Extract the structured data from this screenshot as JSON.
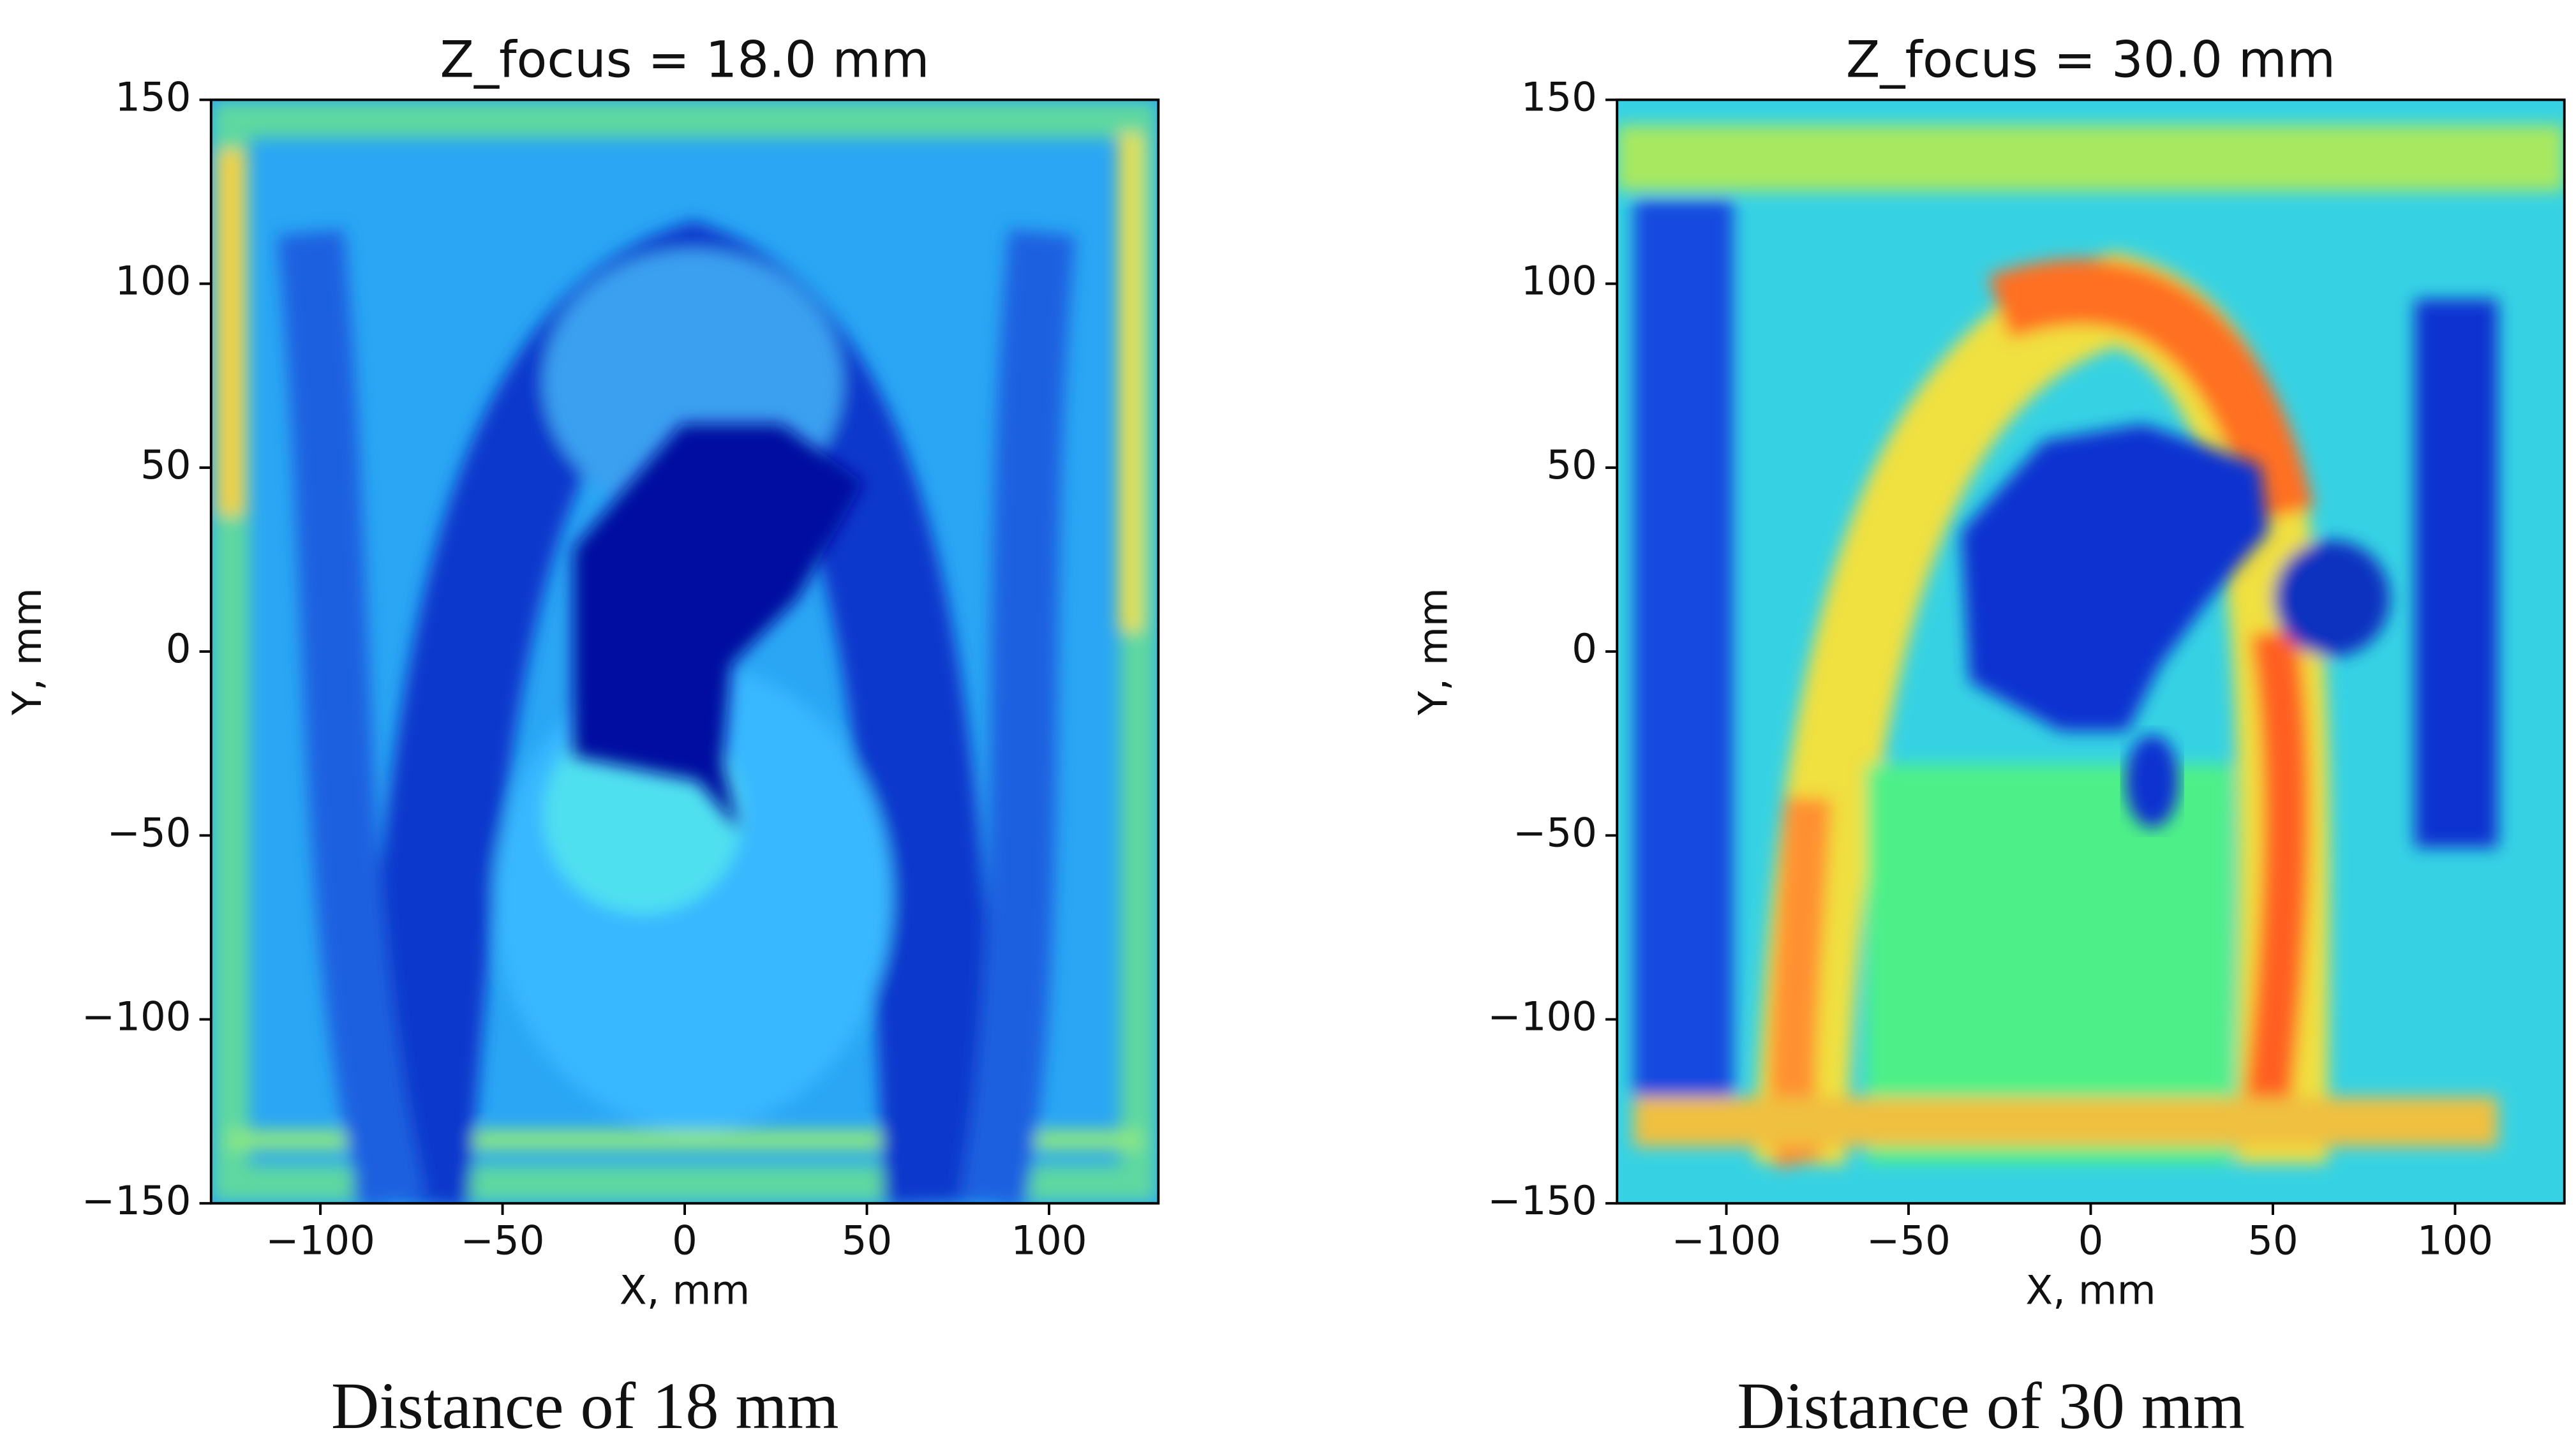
{
  "chart_data": [
    {
      "type": "heatmap",
      "title": "Z_focus = 18.0 mm",
      "xlabel": "X, mm",
      "ylabel": "Y, mm",
      "caption": "Distance of 18 mm",
      "xlim": [
        -130,
        130
      ],
      "ylim": [
        -150,
        150
      ],
      "xticks": [
        {
          "value": -100,
          "label": "−100"
        },
        {
          "value": -50,
          "label": "−50"
        },
        0,
        50,
        100
      ],
      "yticks": [
        {
          "value": -150,
          "label": "−150"
        },
        {
          "value": -100,
          "label": "−100"
        },
        {
          "value": -50,
          "label": "−50"
        },
        0,
        50,
        100,
        150
      ]
    },
    {
      "type": "heatmap",
      "title": "Z_focus = 30.0 mm",
      "xlabel": "X, mm",
      "ylabel": "Y, mm",
      "caption": "Distance of 30 mm",
      "xlim": [
        -130,
        130
      ],
      "ylim": [
        -150,
        150
      ],
      "xticks": [
        {
          "value": -100,
          "label": "−100"
        },
        {
          "value": -50,
          "label": "−50"
        },
        0,
        50,
        100
      ],
      "yticks": [
        {
          "value": -150,
          "label": "−150"
        },
        {
          "value": -100,
          "label": "−100"
        },
        {
          "value": -50,
          "label": "−50"
        },
        0,
        50,
        100,
        150
      ]
    }
  ]
}
